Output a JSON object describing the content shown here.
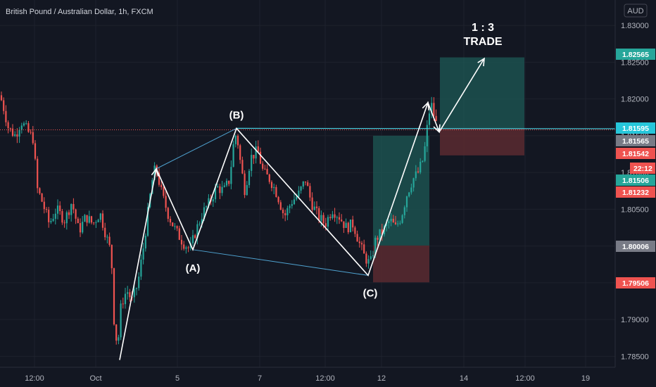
{
  "title": "British Pound / Australian Dollar, 1h, FXCM",
  "currency": "AUD",
  "countdown": "22:12",
  "annotations": {
    "wave_a": "(A)",
    "wave_b": "(B)",
    "wave_c": "(C)",
    "ratio": "1 : 3",
    "trade": "TRADE"
  },
  "colors": {
    "background": "#131722",
    "up": "#26a69a",
    "down": "#ef5350",
    "cyan_line": "#4dd0e1",
    "profit_zone": "#1e5a55",
    "loss_zone": "#5a2a30"
  },
  "chart_data": {
    "type": "candlestick",
    "symbol": "GBPAUD",
    "timeframe": "1h",
    "ylim": [
      1.7835,
      1.8325
    ],
    "y_ticks": [
      "1.83000",
      "1.82500",
      "1.82000",
      "1.81500",
      "1.81000",
      "1.80500",
      "1.80000",
      "1.79500",
      "1.79000",
      "1.78500"
    ],
    "x_ticks": [
      "12:00",
      "Oct",
      "5",
      "7",
      "12:00",
      "12",
      "14",
      "12:00",
      "19"
    ],
    "price_tags": [
      {
        "label": "1.82565",
        "value": 1.82565,
        "color": "#26a69a"
      },
      {
        "label": "1.81595",
        "value": 1.81595,
        "color": "#26c6da"
      },
      {
        "label": "1.81565",
        "value": 1.81565,
        "color": "#787b86"
      },
      {
        "label": "1.81542",
        "value": 1.81542,
        "color": "#ef5350"
      },
      {
        "label": "1.81506",
        "value": 1.81506,
        "color": "#26a69a"
      },
      {
        "label": "1.81232",
        "value": 1.81232,
        "color": "#ef5350"
      },
      {
        "label": "1.80006",
        "value": 1.80006,
        "color": "#787b86"
      },
      {
        "label": "1.79506",
        "value": 1.79506,
        "color": "#ef5350"
      }
    ],
    "price_path": [
      [
        0,
        1.8205
      ],
      [
        6,
        1.8185
      ],
      [
        12,
        1.816
      ],
      [
        22,
        1.815
      ],
      [
        30,
        1.817
      ],
      [
        40,
        1.8155
      ],
      [
        48,
        1.8145
      ],
      [
        52,
        1.808
      ],
      [
        60,
        1.806
      ],
      [
        70,
        1.803
      ],
      [
        80,
        1.805
      ],
      [
        92,
        1.8035
      ],
      [
        102,
        1.806
      ],
      [
        112,
        1.802
      ],
      [
        122,
        1.804
      ],
      [
        132,
        1.803
      ],
      [
        142,
        1.8045
      ],
      [
        152,
        1.801
      ],
      [
        158,
        1.799
      ],
      [
        162,
        1.79
      ],
      [
        167,
        1.786
      ],
      [
        172,
        1.792
      ],
      [
        180,
        1.794
      ],
      [
        188,
        1.7925
      ],
      [
        196,
        1.795
      ],
      [
        204,
        1.8
      ],
      [
        212,
        1.806
      ],
      [
        218,
        1.81
      ],
      [
        222,
        1.8105
      ],
      [
        230,
        1.807
      ],
      [
        240,
        1.804
      ],
      [
        250,
        1.802
      ],
      [
        260,
        1.8005
      ],
      [
        270,
        1.7995
      ],
      [
        278,
        1.802
      ],
      [
        288,
        1.8045
      ],
      [
        298,
        1.806
      ],
      [
        308,
        1.808
      ],
      [
        318,
        1.8075
      ],
      [
        326,
        1.809
      ],
      [
        332,
        1.814
      ],
      [
        336,
        1.8155
      ],
      [
        342,
        1.811
      ],
      [
        348,
        1.8075
      ],
      [
        356,
        1.812
      ],
      [
        366,
        1.813
      ],
      [
        374,
        1.81
      ],
      [
        384,
        1.809
      ],
      [
        394,
        1.807
      ],
      [
        404,
        1.804
      ],
      [
        414,
        1.806
      ],
      [
        424,
        1.807
      ],
      [
        434,
        1.809
      ],
      [
        442,
        1.806
      ],
      [
        452,
        1.804
      ],
      [
        462,
        1.803
      ],
      [
        472,
        1.805
      ],
      [
        482,
        1.804
      ],
      [
        492,
        1.8025
      ],
      [
        502,
        1.803
      ],
      [
        510,
        1.8005
      ],
      [
        518,
        1.7985
      ],
      [
        526,
        1.7975
      ],
      [
        534,
        1.801
      ],
      [
        544,
        1.802
      ],
      [
        554,
        1.8035
      ],
      [
        562,
        1.8025
      ],
      [
        570,
        1.804
      ],
      [
        578,
        1.807
      ],
      [
        586,
        1.809
      ],
      [
        594,
        1.81
      ],
      [
        602,
        1.812
      ],
      [
        608,
        1.817
      ],
      [
        612,
        1.8195
      ],
      [
        616,
        1.818
      ],
      [
        620,
        1.8165
      ]
    ],
    "wave_points": [
      {
        "label": "start",
        "x": 170,
        "y": 1.7845
      },
      {
        "label": "peak1",
        "x": 222,
        "y": 1.8105
      },
      {
        "label": "A",
        "x": 274,
        "y": 1.7995
      },
      {
        "label": "B",
        "x": 336,
        "y": 1.816
      },
      {
        "label": "C",
        "x": 523,
        "y": 1.796
      },
      {
        "label": "peak2",
        "x": 608,
        "y": 1.8195
      },
      {
        "label": "retest",
        "x": 624,
        "y": 1.8155
      },
      {
        "label": "target",
        "x": 688,
        "y": 1.8255
      }
    ],
    "positions": [
      {
        "name": "first",
        "x_start": 530,
        "x_end": 610,
        "entry": 1.80006,
        "target": 1.815,
        "stop": 1.79506
      },
      {
        "name": "second",
        "x_start": 625,
        "x_end": 745,
        "entry": 1.81595,
        "target": 1.82565,
        "stop": 1.81232
      }
    ]
  }
}
